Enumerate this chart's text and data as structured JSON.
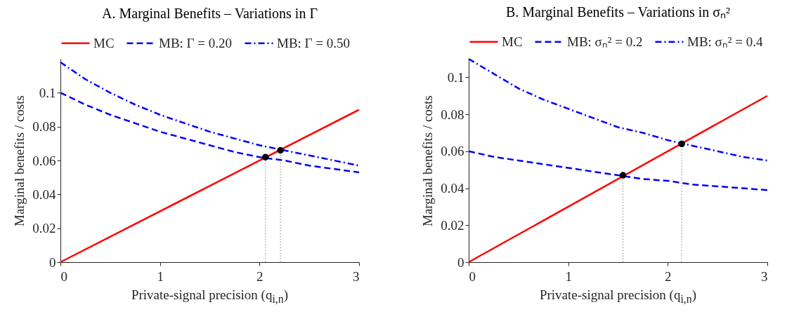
{
  "chart_data": [
    {
      "type": "line",
      "title": "A. Marginal Benefits – Variations in Γ",
      "xlabel": "Private-signal precision (q$_{i,n}$)",
      "ylabel": "Marginal benefits / costs",
      "xlim": [
        0,
        3
      ],
      "xticks": [
        0,
        1,
        2,
        3
      ],
      "ylim": [
        0,
        0.12
      ],
      "yticks": [
        0,
        0.02,
        0.04,
        0.06,
        0.08,
        0.1
      ],
      "legend": "top",
      "x": [
        0,
        0.25,
        0.5,
        0.75,
        1,
        1.25,
        1.5,
        1.75,
        2,
        2.25,
        2.5,
        2.75,
        3
      ],
      "series": [
        {
          "name": "MC",
          "color": "#ff0000",
          "line_style": "solid",
          "x": [
            0,
            3
          ],
          "values": [
            0,
            0.09
          ]
        },
        {
          "name": "MB: Γ = 0.20",
          "color": "#0000ff",
          "line_style": "dashed",
          "values": [
            0.1,
            0.093,
            0.087,
            0.082,
            0.077,
            0.073,
            0.069,
            0.065,
            0.062,
            0.06,
            0.057,
            0.055,
            0.053
          ]
        },
        {
          "name": "MB: Γ = 0.50",
          "color": "#0000ff",
          "line_style": "dashdot",
          "values": [
            0.118,
            0.108,
            0.1,
            0.093,
            0.087,
            0.082,
            0.077,
            0.073,
            0.069,
            0.066,
            0.063,
            0.06,
            0.057
          ]
        },
        {
          "type": "line",
          "color": "#808080",
          "line_style": "dotted",
          "x": [
            2.06,
            2.06
          ],
          "values": [
            0,
            0.062
          ]
        },
        {
          "type": "line",
          "color": "#808080",
          "line_style": "dotted",
          "x": [
            2.21,
            2.21
          ],
          "values": [
            0,
            0.066
          ]
        },
        {
          "type": "scatter",
          "color": "#000000",
          "marker": "circle",
          "x": [
            2.06,
            2.21
          ],
          "values": [
            0.062,
            0.066
          ]
        }
      ]
    },
    {
      "type": "line",
      "title": "B. Marginal Benefits – Variations in σₙ²",
      "xlabel": "Private-signal precision (q$_{i,n}$)",
      "ylabel": "Marginal benefits / costs",
      "xlim": [
        0,
        3
      ],
      "xticks": [
        0,
        1,
        2,
        3
      ],
      "ylim": [
        0,
        0.11
      ],
      "yticks": [
        0,
        0.02,
        0.04,
        0.06,
        0.08,
        0.1
      ],
      "legend": "top",
      "x": [
        0,
        0.25,
        0.5,
        0.75,
        1,
        1.25,
        1.5,
        1.75,
        2,
        2.25,
        2.5,
        2.75,
        3
      ],
      "series": [
        {
          "name": "MC",
          "color": "#ff0000",
          "line_style": "solid",
          "x": [
            0,
            3
          ],
          "values": [
            0,
            0.09
          ]
        },
        {
          "name": "MB: σₙ² = 0.2",
          "color": "#0000ff",
          "line_style": "dashed",
          "values": [
            0.06,
            0.057,
            0.055,
            0.053,
            0.051,
            0.049,
            0.047,
            0.045,
            0.044,
            0.042,
            0.041,
            0.04,
            0.039
          ]
        },
        {
          "name": "MB: σₙ² = 0.4",
          "color": "#0000ff",
          "line_style": "dashdot",
          "values": [
            0.11,
            0.102,
            0.094,
            0.088,
            0.083,
            0.078,
            0.073,
            0.07,
            0.066,
            0.063,
            0.06,
            0.057,
            0.055
          ]
        },
        {
          "type": "line",
          "color": "#808080",
          "line_style": "dotted",
          "x": [
            1.55,
            1.55
          ],
          "values": [
            0,
            0.047
          ]
        },
        {
          "type": "line",
          "color": "#808080",
          "line_style": "dotted",
          "x": [
            2.14,
            2.14
          ],
          "values": [
            0,
            0.064
          ]
        },
        {
          "type": "scatter",
          "color": "#000000",
          "marker": "circle",
          "x": [
            1.55,
            2.14
          ],
          "values": [
            0.047,
            0.064
          ]
        }
      ]
    }
  ]
}
